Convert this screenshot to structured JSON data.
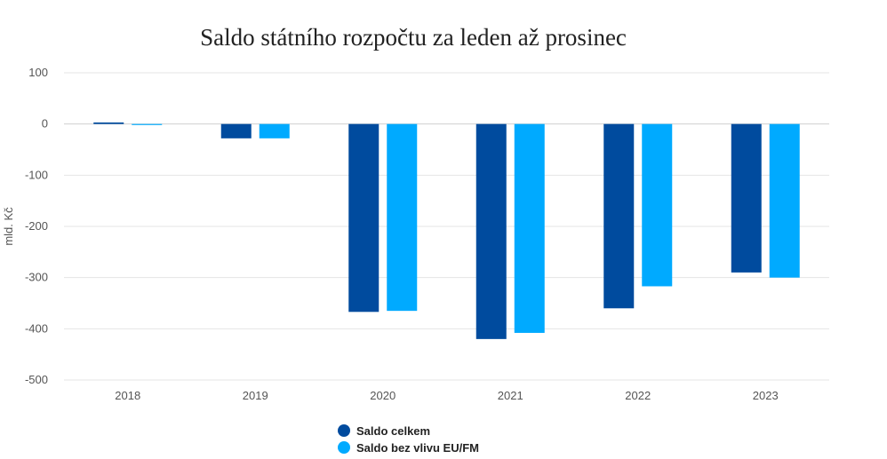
{
  "chart_data": {
    "type": "bar",
    "title": "Saldo státního rozpočtu za leden až prosinec",
    "xlabel": "",
    "ylabel": "mld. Kč",
    "ylim": [
      -500,
      100
    ],
    "yticks": [
      100,
      0,
      -100,
      -200,
      -300,
      -400,
      -500
    ],
    "categories": [
      "2018",
      "2019",
      "2020",
      "2021",
      "2022",
      "2023"
    ],
    "series": [
      {
        "name": "Saldo celkem",
        "color": "#004b9e",
        "values": [
          3,
          -28,
          -367,
          -420,
          -360,
          -290
        ]
      },
      {
        "name": "Saldo bez vlivu EU/FM",
        "color": "#00aaff",
        "values": [
          -2,
          -28,
          -365,
          -408,
          -317,
          -300
        ]
      }
    ],
    "grid": true,
    "legend_position": "bottom-center"
  }
}
